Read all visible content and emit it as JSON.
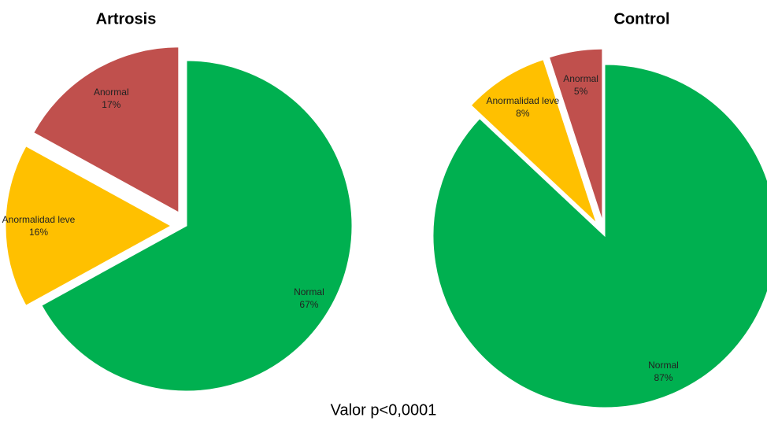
{
  "chart_data": [
    {
      "type": "pie",
      "title": "Artrosis",
      "categories": [
        "Normal",
        "Anormalidad leve",
        "Anormal"
      ],
      "values": [
        67,
        16,
        17
      ],
      "value_labels": [
        "67%",
        "16%",
        "17%"
      ],
      "colors": [
        "#00b050",
        "#ffc000",
        "#c0504d"
      ]
    },
    {
      "type": "pie",
      "title": "Control",
      "categories": [
        "Normal",
        "Anormalidad leve",
        "Anormal"
      ],
      "values": [
        87,
        8,
        5
      ],
      "value_labels": [
        "87%",
        "8%",
        "5%"
      ],
      "colors": [
        "#00b050",
        "#ffc000",
        "#c0504d"
      ]
    }
  ],
  "footnote": "Valor p<0,0001"
}
